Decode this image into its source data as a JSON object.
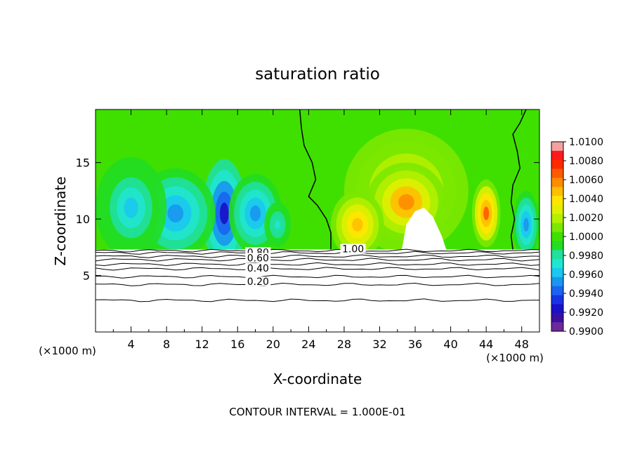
{
  "chart_data": {
    "type": "heatmap",
    "title": "saturation ratio",
    "xlabel": "X-coordinate",
    "ylabel": "Z-coordinate",
    "x_unit": "(×1000 m)",
    "y_unit": "(×1000 m)",
    "xlim": [
      0,
      50
    ],
    "ylim": [
      0,
      19.7
    ],
    "x_ticks": [
      4,
      8,
      12,
      16,
      20,
      24,
      28,
      32,
      36,
      40,
      44,
      48
    ],
    "y_ticks": [
      5,
      10,
      15
    ],
    "footnote": "CONTOUR INTERVAL = 1.000E-01",
    "colorbar": {
      "ticks": [
        "1.0100",
        "1.0080",
        "1.0060",
        "1.0040",
        "1.0020",
        "1.0000",
        "0.9980",
        "0.9960",
        "0.9940",
        "0.9920",
        "0.9900"
      ],
      "colors": [
        "#f4a0a0",
        "#ff1a1a",
        "#ff2a00",
        "#ff5a00",
        "#ff8c00",
        "#ffbf00",
        "#ffe600",
        "#e0f000",
        "#b4f000",
        "#7ce800",
        "#3fe000",
        "#22dd22",
        "#20e0a0",
        "#20e6d0",
        "#1ac8f0",
        "#1a96f0",
        "#1a64f0",
        "#1a32e6",
        "#1a10c8",
        "#3a10a0",
        "#6a2a9a"
      ]
    },
    "contour_labels": [
      {
        "text": "0.80",
        "x": 18.3,
        "y": 7.0
      },
      {
        "text": "0.60",
        "x": 18.3,
        "y": 6.5
      },
      {
        "text": "0.40",
        "x": 18.3,
        "y": 5.6
      },
      {
        "text": "0.20",
        "x": 18.3,
        "y": 4.4
      },
      {
        "text": "1.00",
        "x": 29.0,
        "y": 7.3
      }
    ],
    "contour_levels": [
      0.2,
      0.3,
      0.4,
      0.5,
      0.6,
      0.7,
      0.8,
      0.9,
      1.0
    ],
    "contour_heights": [
      2.8,
      4.2,
      4.9,
      5.6,
      6.0,
      6.4,
      6.7,
      7.0,
      7.2
    ],
    "cloud_base": 7.3,
    "fields": [
      {
        "x": 14.5,
        "y": 10.5,
        "rx": 2.5,
        "ry": 4.8,
        "v": -0.0075
      },
      {
        "x": 9.0,
        "y": 10.5,
        "rx": 4.5,
        "ry": 4.0,
        "v": -0.0045
      },
      {
        "x": 4.0,
        "y": 11.0,
        "rx": 4.0,
        "ry": 4.5,
        "v": -0.0035
      },
      {
        "x": 18.0,
        "y": 10.5,
        "rx": 3.0,
        "ry": 3.5,
        "v": -0.0045
      },
      {
        "x": 20.5,
        "y": 9.5,
        "rx": 1.5,
        "ry": 2.0,
        "v": -0.0025
      },
      {
        "x": 35.0,
        "y": 12.5,
        "rx": 7.0,
        "ry": 5.5,
        "v": 0.0035
      },
      {
        "x": 35.0,
        "y": 11.5,
        "rx": 4.5,
        "ry": 3.5,
        "v": 0.0055
      },
      {
        "x": 44.0,
        "y": 10.5,
        "rx": 1.6,
        "ry": 3.0,
        "v": 0.0065
      },
      {
        "x": 29.5,
        "y": 9.5,
        "rx": 3.0,
        "ry": 3.0,
        "v": 0.0045
      },
      {
        "x": 48.5,
        "y": 9.5,
        "rx": 1.5,
        "ry": 3.0,
        "v": -0.0045
      }
    ],
    "clear_region": [
      [
        34.5,
        7.3
      ],
      [
        35.0,
        9.5
      ],
      [
        36.0,
        10.7
      ],
      [
        37.0,
        11.0
      ],
      [
        38.0,
        10.2
      ],
      [
        39.0,
        8.5
      ],
      [
        39.5,
        7.3
      ]
    ],
    "zero_contour_left": [
      [
        23.0,
        19.7
      ],
      [
        23.2,
        18.0
      ],
      [
        23.5,
        16.5
      ],
      [
        24.4,
        15.0
      ],
      [
        24.8,
        13.5
      ],
      [
        24.0,
        12.0
      ],
      [
        25.0,
        11.2
      ],
      [
        26.0,
        10.0
      ],
      [
        26.5,
        8.8
      ],
      [
        26.5,
        7.3
      ]
    ],
    "zero_contour_right": [
      [
        48.5,
        19.7
      ],
      [
        47.8,
        18.5
      ],
      [
        47.0,
        17.5
      ],
      [
        47.5,
        16.0
      ],
      [
        47.8,
        14.5
      ],
      [
        47.0,
        13.0
      ],
      [
        46.8,
        11.5
      ],
      [
        47.2,
        10.0
      ],
      [
        46.8,
        8.5
      ],
      [
        47.0,
        7.3
      ]
    ]
  }
}
